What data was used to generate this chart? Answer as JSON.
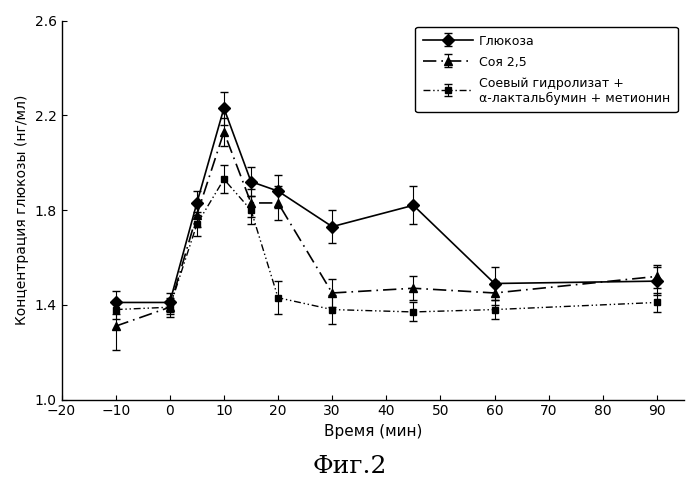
{
  "x": [
    -10,
    0,
    5,
    10,
    15,
    20,
    30,
    45,
    60,
    90
  ],
  "glucose_y": [
    1.41,
    1.41,
    1.83,
    2.23,
    1.92,
    1.88,
    1.73,
    1.82,
    1.49,
    1.5
  ],
  "glucose_err": [
    0.05,
    0.04,
    0.05,
    0.07,
    0.06,
    0.07,
    0.07,
    0.08,
    0.07,
    0.06
  ],
  "soy_y": [
    1.31,
    1.39,
    1.78,
    2.13,
    1.83,
    1.83,
    1.45,
    1.47,
    1.45,
    1.52
  ],
  "soy_err": [
    0.1,
    0.03,
    0.05,
    0.06,
    0.06,
    0.07,
    0.06,
    0.05,
    0.05,
    0.05
  ],
  "hydro_y": [
    1.38,
    1.39,
    1.74,
    1.93,
    1.8,
    1.43,
    1.38,
    1.37,
    1.38,
    1.41
  ],
  "hydro_err": [
    0.04,
    0.04,
    0.05,
    0.06,
    0.06,
    0.07,
    0.06,
    0.04,
    0.04,
    0.04
  ],
  "xlabel": "Время (мин)",
  "ylabel": "Концентрация глюкозы (нг/мл)",
  "legend1": "Глюкоза",
  "legend2": "Соя 2,5",
  "legend3": "Соевый гидролизат +\nα-лактальбумин + метионин",
  "figtitle": "Фиг.2",
  "xlim": [
    -20,
    95
  ],
  "ylim": [
    1.0,
    2.6
  ],
  "xticks": [
    -20,
    -10,
    0,
    10,
    20,
    30,
    40,
    50,
    60,
    70,
    80,
    90
  ],
  "yticks": [
    1.0,
    1.4,
    1.8,
    2.2,
    2.6
  ],
  "color": "#000000"
}
